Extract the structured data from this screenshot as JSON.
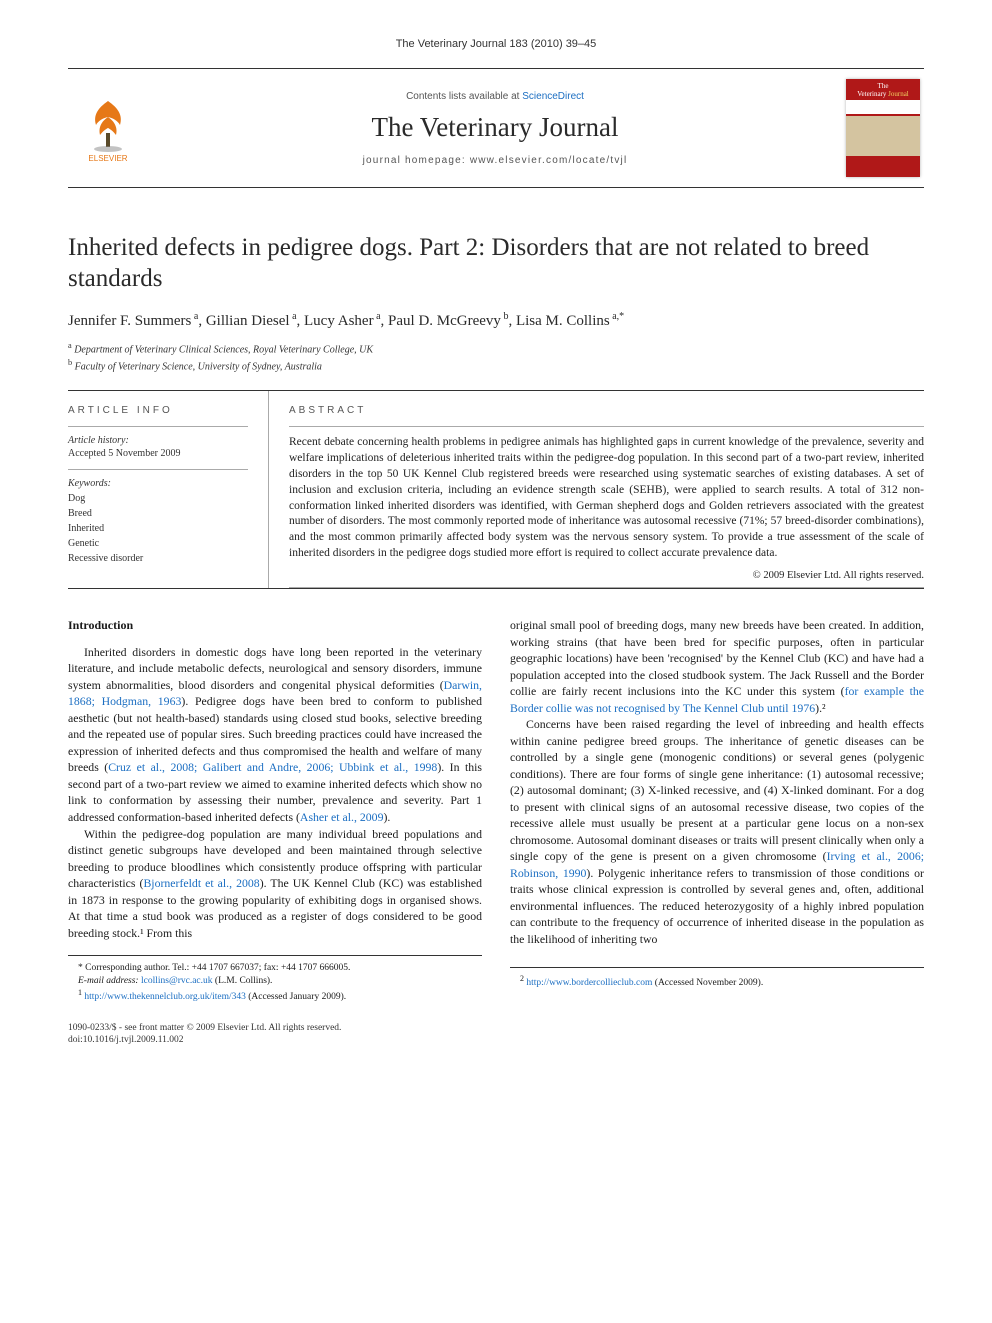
{
  "running_head": "The Veterinary Journal 183 (2010) 39–45",
  "masthead": {
    "contents_prefix": "Contents lists available at ",
    "contents_link": "ScienceDirect",
    "journal_title": "The Veterinary Journal",
    "homepage_prefix": "journal homepage: ",
    "homepage_url": "www.elsevier.com/locate/tvjl",
    "publisher_name": "ELSEVIER",
    "cover_line1": "The",
    "cover_line2": "Veterinary",
    "cover_line3": "Journal"
  },
  "article": {
    "title": "Inherited defects in pedigree dogs. Part 2: Disorders that are not related to breed standards",
    "authors_html": "Jennifer F. Summers<sup> a</sup>, Gillian Diesel<sup> a</sup>, Lucy Asher<sup> a</sup>, Paul D. McGreevy<sup> b</sup>, Lisa M. Collins<sup> a,*</sup>",
    "affiliations": [
      {
        "mark": "a",
        "text": "Department of Veterinary Clinical Sciences, Royal Veterinary College, UK"
      },
      {
        "mark": "b",
        "text": "Faculty of Veterinary Science, University of Sydney, Australia"
      }
    ]
  },
  "article_info": {
    "head": "ARTICLE INFO",
    "history_label": "Article history:",
    "history_text": "Accepted 5 November 2009",
    "keywords_label": "Keywords:",
    "keywords": [
      "Dog",
      "Breed",
      "Inherited",
      "Genetic",
      "Recessive disorder"
    ]
  },
  "abstract": {
    "head": "ABSTRACT",
    "text": "Recent debate concerning health problems in pedigree animals has highlighted gaps in current knowledge of the prevalence, severity and welfare implications of deleterious inherited traits within the pedigree-dog population. In this second part of a two-part review, inherited disorders in the top 50 UK Kennel Club registered breeds were researched using systematic searches of existing databases. A set of inclusion and exclusion criteria, including an evidence strength scale (SEHB), were applied to search results. A total of 312 non-conformation linked inherited disorders was identified, with German shepherd dogs and Golden retrievers associated with the greatest number of disorders. The most commonly reported mode of inheritance was autosomal recessive (71%; 57 breed-disorder combinations), and the most common primarily affected body system was the nervous sensory system. To provide a true assessment of the scale of inherited disorders in the pedigree dogs studied more effort is required to collect accurate prevalence data.",
    "copyright": "© 2009 Elsevier Ltd. All rights reserved."
  },
  "body": {
    "intro_heading": "Introduction",
    "col1_p1": "Inherited disorders in domestic dogs have long been reported in the veterinary literature, and include metabolic defects, neurological and sensory disorders, immune system abnormalities, blood disorders and congenital physical deformities (Darwin, 1868; Hodgman, 1963). Pedigree dogs have been bred to conform to published aesthetic (but not health-based) standards using closed stud books, selective breeding and the repeated use of popular sires. Such breeding practices could have increased the expression of inherited defects and thus compromised the health and welfare of many breeds (Cruz et al., 2008; Galibert and Andre, 2006; Ubbink et al., 1998). In this second part of a two-part review we aimed to examine inherited defects which show no link to conformation by assessing their number, prevalence and severity. Part 1 addressed conformation-based inherited defects (Asher et al., 2009).",
    "col1_p2": "Within the pedigree-dog population are many individual breed populations and distinct genetic subgroups have developed and been maintained through selective breeding to produce bloodlines which consistently produce offspring with particular characteristics (Bjornerfeldt et al., 2008). The UK Kennel Club (KC) was established in 1873 in response to the growing popularity of exhibiting dogs in organised shows. At that time a stud book was produced as a register of dogs considered to be good breeding stock.¹ From this",
    "col2_p1": "original small pool of breeding dogs, many new breeds have been created. In addition, working strains (that have been bred for specific purposes, often in particular geographic locations) have been 'recognised' by the Kennel Club (KC) and have had a population accepted into the closed studbook system. The Jack Russell and the Border collie are fairly recent inclusions into the KC under this system (for example the Border collie was not recognised by The Kennel Club until 1976).²",
    "col2_p2": "Concerns have been raised regarding the level of inbreeding and health effects within canine pedigree breed groups. The inheritance of genetic diseases can be controlled by a single gene (monogenic conditions) or several genes (polygenic conditions). There are four forms of single gene inheritance: (1) autosomal recessive; (2) autosomal dominant; (3) X-linked recessive, and (4) X-linked dominant. For a dog to present with clinical signs of an autosomal recessive disease, two copies of the recessive allele must usually be present at a particular gene locus on a non-sex chromosome. Autosomal dominant diseases or traits will present clinically when only a single copy of the gene is present on a given chromosome (Irving et al., 2006; Robinson, 1990). Polygenic inheritance refers to transmission of those conditions or traits whose clinical expression is controlled by several genes and, often, additional environmental influences. The reduced heterozygosity of a highly inbred population can contribute to the frequency of occurrence of inherited disease in the population as the likelihood of inheriting two"
  },
  "footnotes": {
    "corresponding": "* Corresponding author. Tel.: +44 1707 667037; fax: +44 1707 666005.",
    "email_label": "E-mail address:",
    "email": "lcollins@rvc.ac.uk",
    "email_suffix": "(L.M. Collins).",
    "fn1_url": "http://www.thekennelclub.org.uk/item/343",
    "fn1_suffix": "(Accessed January 2009).",
    "fn2_url": "http://www.bordercollieclub.com",
    "fn2_suffix": "(Accessed November 2009)."
  },
  "footer": {
    "issn_line": "1090-0233/$ - see front matter © 2009 Elsevier Ltd. All rights reserved.",
    "doi_line": "doi:10.1016/j.tvjl.2009.11.002"
  },
  "colors": {
    "link": "#1b6ec2",
    "cover_bg": "#b01818",
    "text": "#1a1a1a"
  }
}
